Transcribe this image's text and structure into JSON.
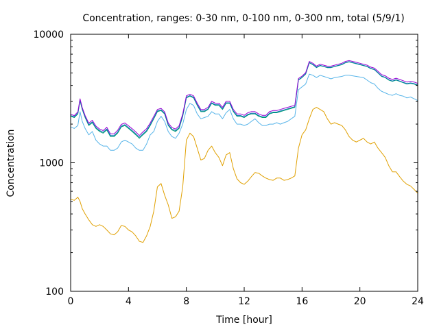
{
  "chart_data": {
    "type": "line",
    "title": "Concentration, ranges: 0-30 nm, 0-100 nm, 0-300 nm, total (5/9/1)",
    "xlabel": "Time [hour]",
    "ylabel": "Concentration",
    "xlim": [
      0,
      24
    ],
    "ylim": [
      100,
      10000
    ],
    "yscale": "log",
    "x_ticks": [
      0,
      4,
      8,
      12,
      16,
      20,
      24
    ],
    "x_tick_labels": [
      "0",
      "4",
      "8",
      "12",
      "16",
      "20",
      "24"
    ],
    "y_ticks": [
      100,
      1000,
      10000
    ],
    "y_tick_labels": [
      "100",
      "1000",
      "10000"
    ],
    "grid": false,
    "legend": "none",
    "x": [
      0,
      0.25,
      0.5,
      0.65,
      0.8,
      1,
      1.25,
      1.5,
      1.75,
      2,
      2.25,
      2.5,
      2.75,
      3,
      3.25,
      3.5,
      3.75,
      4,
      4.25,
      4.5,
      4.75,
      5,
      5.25,
      5.5,
      5.75,
      6,
      6.25,
      6.5,
      6.75,
      7,
      7.25,
      7.5,
      7.75,
      8,
      8.25,
      8.5,
      8.75,
      9,
      9.25,
      9.5,
      9.75,
      10,
      10.25,
      10.5,
      10.75,
      11,
      11.25,
      11.5,
      11.75,
      12,
      12.25,
      12.5,
      12.75,
      13,
      13.25,
      13.5,
      13.75,
      14,
      14.25,
      14.5,
      14.75,
      15,
      15.25,
      15.5,
      15.75,
      16,
      16.25,
      16.5,
      16.75,
      17,
      17.25,
      17.5,
      17.75,
      18,
      18.25,
      18.5,
      18.75,
      19,
      19.25,
      19.5,
      19.75,
      20,
      20.25,
      20.5,
      20.75,
      21,
      21.25,
      21.5,
      21.75,
      22,
      22.25,
      22.5,
      22.75,
      23,
      23.25,
      23.5,
      23.75,
      24
    ],
    "series": [
      {
        "color": "#e0a000",
        "values": [
          520,
          510,
          540,
          500,
          440,
          400,
          360,
          330,
          320,
          330,
          320,
          300,
          280,
          275,
          290,
          325,
          320,
          300,
          290,
          270,
          245,
          240,
          270,
          320,
          420,
          650,
          690,
          560,
          470,
          370,
          380,
          420,
          650,
          1500,
          1700,
          1600,
          1300,
          1050,
          1080,
          1250,
          1350,
          1200,
          1100,
          950,
          1150,
          1200,
          900,
          750,
          700,
          680,
          720,
          780,
          840,
          830,
          790,
          760,
          740,
          730,
          760,
          760,
          730,
          740,
          760,
          790,
          1300,
          1650,
          1800,
          2200,
          2600,
          2700,
          2600,
          2500,
          2200,
          2000,
          2050,
          2000,
          1950,
          1800,
          1600,
          1500,
          1450,
          1500,
          1550,
          1450,
          1400,
          1450,
          1300,
          1200,
          1100,
          950,
          850,
          850,
          780,
          720,
          680,
          660,
          620,
          580
        ]
      },
      {
        "color": "#56b4e9",
        "values": [
          1900,
          1850,
          1950,
          2500,
          2100,
          1850,
          1650,
          1750,
          1500,
          1400,
          1350,
          1350,
          1250,
          1250,
          1300,
          1450,
          1500,
          1450,
          1400,
          1300,
          1250,
          1250,
          1400,
          1650,
          1750,
          2100,
          2300,
          2100,
          1750,
          1600,
          1550,
          1700,
          2000,
          2600,
          2900,
          2800,
          2400,
          2200,
          2250,
          2300,
          2500,
          2400,
          2400,
          2200,
          2450,
          2600,
          2200,
          2000,
          2000,
          1950,
          2000,
          2100,
          2200,
          2050,
          1950,
          1950,
          2000,
          2000,
          2050,
          2000,
          2050,
          2100,
          2200,
          2300,
          3700,
          3900,
          4100,
          4900,
          4800,
          4600,
          4800,
          4700,
          4600,
          4500,
          4600,
          4650,
          4700,
          4800,
          4800,
          4750,
          4700,
          4650,
          4600,
          4400,
          4200,
          4100,
          3800,
          3600,
          3500,
          3400,
          3350,
          3450,
          3350,
          3300,
          3200,
          3250,
          3150,
          3050
        ]
      },
      {
        "color": "#009e73",
        "values": [
          2300,
          2250,
          2400,
          3050,
          2600,
          2250,
          1950,
          2050,
          1850,
          1750,
          1700,
          1800,
          1600,
          1600,
          1700,
          1900,
          1950,
          1850,
          1750,
          1650,
          1550,
          1650,
          1750,
          1950,
          2200,
          2500,
          2550,
          2400,
          1950,
          1800,
          1750,
          1850,
          2300,
          3200,
          3300,
          3200,
          2800,
          2500,
          2500,
          2600,
          2900,
          2800,
          2800,
          2600,
          2900,
          2900,
          2500,
          2300,
          2300,
          2250,
          2350,
          2400,
          2400,
          2300,
          2250,
          2250,
          2400,
          2450,
          2450,
          2500,
          2550,
          2600,
          2650,
          2700,
          4400,
          4600,
          4900,
          6000,
          5800,
          5500,
          5700,
          5600,
          5500,
          5500,
          5600,
          5700,
          5800,
          6000,
          6100,
          6000,
          5900,
          5800,
          5700,
          5600,
          5400,
          5300,
          5000,
          4700,
          4600,
          4400,
          4300,
          4400,
          4300,
          4200,
          4100,
          4150,
          4100,
          4000
        ]
      },
      {
        "color": "#0072b2",
        "values": [
          2330,
          2280,
          2430,
          3080,
          2630,
          2280,
          1980,
          2080,
          1880,
          1780,
          1730,
          1830,
          1630,
          1630,
          1730,
          1930,
          1980,
          1880,
          1780,
          1680,
          1580,
          1680,
          1780,
          1980,
          2230,
          2530,
          2580,
          2430,
          1980,
          1830,
          1780,
          1880,
          2330,
          3230,
          3330,
          3230,
          2830,
          2530,
          2530,
          2630,
          2930,
          2830,
          2830,
          2630,
          2930,
          2930,
          2530,
          2330,
          2330,
          2280,
          2380,
          2430,
          2430,
          2330,
          2280,
          2280,
          2430,
          2480,
          2480,
          2530,
          2580,
          2630,
          2680,
          2730,
          4430,
          4630,
          4930,
          6030,
          5830,
          5530,
          5730,
          5630,
          5530,
          5530,
          5630,
          5730,
          5830,
          6030,
          6130,
          6030,
          5930,
          5830,
          5730,
          5630,
          5430,
          5330,
          5030,
          4730,
          4630,
          4430,
          4330,
          4430,
          4330,
          4230,
          4130,
          4180,
          4130,
          4030
        ]
      },
      {
        "color": "#9400d3",
        "values": [
          2380,
          2330,
          2490,
          3150,
          2690,
          2330,
          2030,
          2140,
          1930,
          1830,
          1780,
          1890,
          1680,
          1680,
          1790,
          1990,
          2040,
          1940,
          1840,
          1740,
          1630,
          1740,
          1840,
          2040,
          2300,
          2600,
          2650,
          2490,
          2040,
          1880,
          1830,
          1940,
          2400,
          3320,
          3420,
          3320,
          2910,
          2600,
          2600,
          2700,
          3010,
          2910,
          2910,
          2700,
          3010,
          3010,
          2600,
          2400,
          2400,
          2340,
          2450,
          2500,
          2500,
          2400,
          2340,
          2340,
          2500,
          2550,
          2550,
          2600,
          2650,
          2700,
          2750,
          2800,
          4530,
          4730,
          5030,
          6150,
          5950,
          5650,
          5850,
          5750,
          5650,
          5650,
          5750,
          5850,
          5950,
          6150,
          6250,
          6150,
          6050,
          5950,
          5850,
          5750,
          5550,
          5450,
          5150,
          4850,
          4750,
          4550,
          4450,
          4550,
          4450,
          4350,
          4250,
          4300,
          4250,
          4150
        ]
      }
    ]
  }
}
